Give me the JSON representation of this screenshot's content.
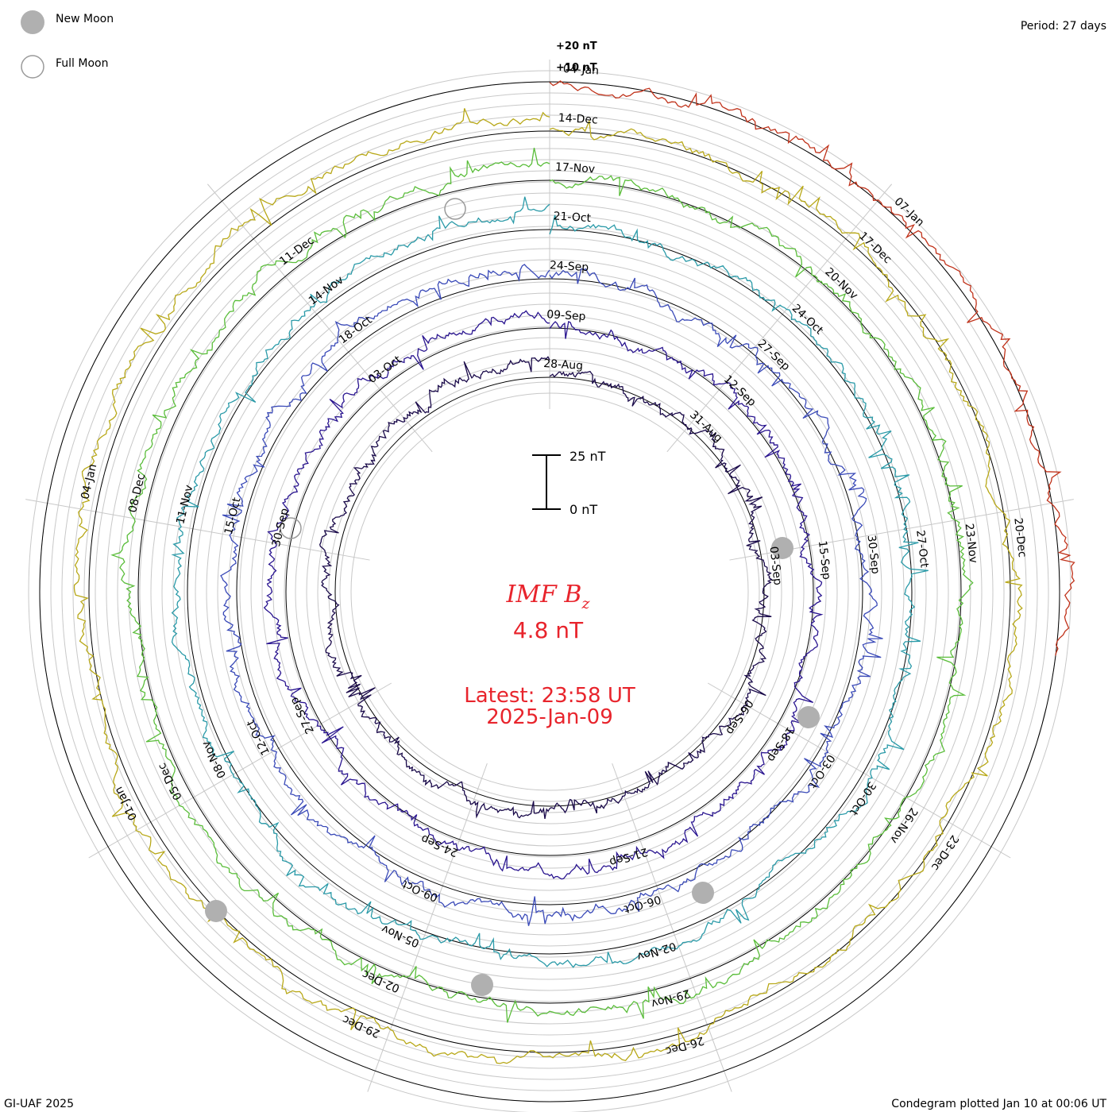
{
  "legend": {
    "new_moon": "New Moon",
    "full_moon": "Full Moon",
    "new_moon_color": "#b0b0b0",
    "full_moon_color": "#9a9a9a"
  },
  "period": "Period: 27 days",
  "footer": {
    "left": "GI-UAF 2025",
    "right": "Condegram plotted Jan 10 at 00:06 UT"
  },
  "scale_bar": {
    "top_label": "25 nT",
    "bottom_label": "0 nT"
  },
  "reference_labels": {
    "plus20": "+20 nT",
    "plus10": "+10 nT"
  },
  "center": {
    "title_main": "IMF B",
    "title_sub": "z",
    "value": "4.8 nT",
    "latest": "Latest: 23:58 UT",
    "date": "2025-Jan-09"
  },
  "chart_data": {
    "type": "line",
    "layout": "condegram-spiral",
    "quantity": "IMF Bz",
    "units": "nT",
    "period_days": 27,
    "latest_value": 4.8,
    "rotations": [
      {
        "start": "2024-08-28",
        "color": "#1a0a4a",
        "date_ticks": [
          "28-Aug",
          "31-Aug",
          "03-Sep",
          "06-Sep"
        ]
      },
      {
        "start": "2024-09-09",
        "color": "#2a1590",
        "date_ticks": [
          "09-Sep",
          "12-Sep",
          "15-Sep",
          "18-Sep",
          "21-Sep",
          "24-Sep",
          "27-Sep",
          "30-Sep",
          "03-Oct"
        ]
      },
      {
        "start": "2024-09-24",
        "color": "#3a4ab8",
        "date_ticks": [
          "24-Sep",
          "27-Sep",
          "30-Sep",
          "03-Oct",
          "06-Oct",
          "09-Oct",
          "12-Oct",
          "15-Oct",
          "18-Oct"
        ]
      },
      {
        "start": "2024-10-21",
        "color": "#2a9aa8",
        "date_ticks": [
          "21-Oct",
          "24-Oct",
          "27-Oct",
          "30-Oct",
          "02-Nov",
          "05-Nov",
          "08-Nov",
          "11-Nov",
          "14-Nov"
        ]
      },
      {
        "start": "2024-11-17",
        "color": "#5abd3a",
        "date_ticks": [
          "17-Nov",
          "20-Nov",
          "23-Nov",
          "26-Nov",
          "29-Nov",
          "02-Dec",
          "05-Dec",
          "08-Dec",
          "11-Dec"
        ]
      },
      {
        "start": "2024-12-14",
        "color": "#b8a818",
        "date_ticks": [
          "14-Dec",
          "17-Dec",
          "20-Dec",
          "23-Dec",
          "26-Dec",
          "29-Dec",
          "01-Jan",
          "04-Jan"
        ]
      },
      {
        "start": "2025-01-04",
        "color": "#c0321a",
        "date_ticks": [
          "04-Jan",
          "07-Jan"
        ]
      }
    ],
    "moon_phases": {
      "new_moon": [
        "2024-09-03",
        "2024-10-02",
        "2024-11-01",
        "2024-12-01",
        "2024-12-30"
      ],
      "full_moon": [
        "2024-09-18",
        "2024-10-17",
        "2024-11-15",
        "2024-12-15"
      ]
    }
  }
}
